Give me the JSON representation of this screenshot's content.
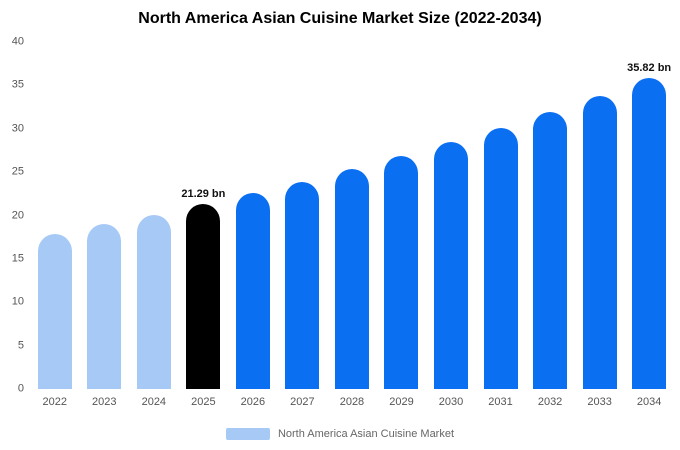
{
  "title": "North America Asian Cuisine Market Size (2022-2034)",
  "legend": {
    "label": "North America Asian Cuisine Market",
    "swatch_color": "#a7c9f5"
  },
  "colors": {
    "past_bars": "#a7c9f5",
    "highlight_bar": "#000000",
    "future_bars": "#0b6ff2"
  },
  "chart_data": {
    "type": "bar",
    "title": "North America Asian Cuisine Market Size (2022-2034)",
    "categories": [
      "2022",
      "2023",
      "2024",
      "2025",
      "2026",
      "2027",
      "2028",
      "2029",
      "2030",
      "2031",
      "2032",
      "2033",
      "2034"
    ],
    "values": [
      17.9,
      18.97,
      20.09,
      21.29,
      22.56,
      23.9,
      25.32,
      26.83,
      28.43,
      30.12,
      31.91,
      33.81,
      35.82
    ],
    "bar_colors": [
      "#a7c9f5",
      "#a7c9f5",
      "#a7c9f5",
      "#000000",
      "#0b6ff2",
      "#0b6ff2",
      "#0b6ff2",
      "#0b6ff2",
      "#0b6ff2",
      "#0b6ff2",
      "#0b6ff2",
      "#0b6ff2",
      "#0b6ff2"
    ],
    "annotations": [
      {
        "index": 3,
        "label": "21.29 bn"
      },
      {
        "index": 12,
        "label": "35.82 bn"
      }
    ],
    "xlabel": "",
    "ylabel": "",
    "ylim": [
      0,
      40
    ],
    "yticks": [
      0,
      5,
      10,
      15,
      20,
      25,
      30,
      35,
      40
    ],
    "grid": false,
    "legend_position": "bottom"
  }
}
